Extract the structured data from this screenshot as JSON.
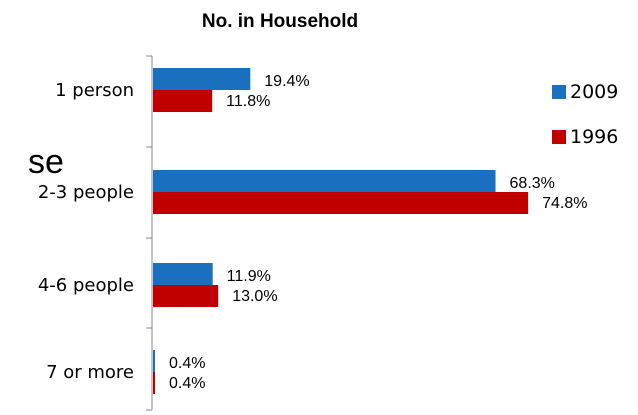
{
  "stray_fragment": "se",
  "chart_data": {
    "type": "bar",
    "orientation": "horizontal",
    "title": "No. in Household",
    "categories": [
      "1 person",
      "2-3 people",
      "4-6 people",
      "7 or more"
    ],
    "series": [
      {
        "name": "2009",
        "color": "#1A6FBF",
        "values": [
          19.4,
          68.3,
          11.9,
          0.4
        ],
        "labels": [
          "19.4%",
          "68.3%",
          "11.9%",
          "0.4%"
        ]
      },
      {
        "name": "1996",
        "color": "#C00000",
        "values": [
          11.8,
          74.8,
          13.0,
          0.4
        ],
        "labels": [
          "11.8%",
          "74.8%",
          "13.0%",
          "0.4%"
        ]
      }
    ],
    "xlim": [
      0,
      100
    ],
    "grid": false,
    "legend_position": "right"
  }
}
